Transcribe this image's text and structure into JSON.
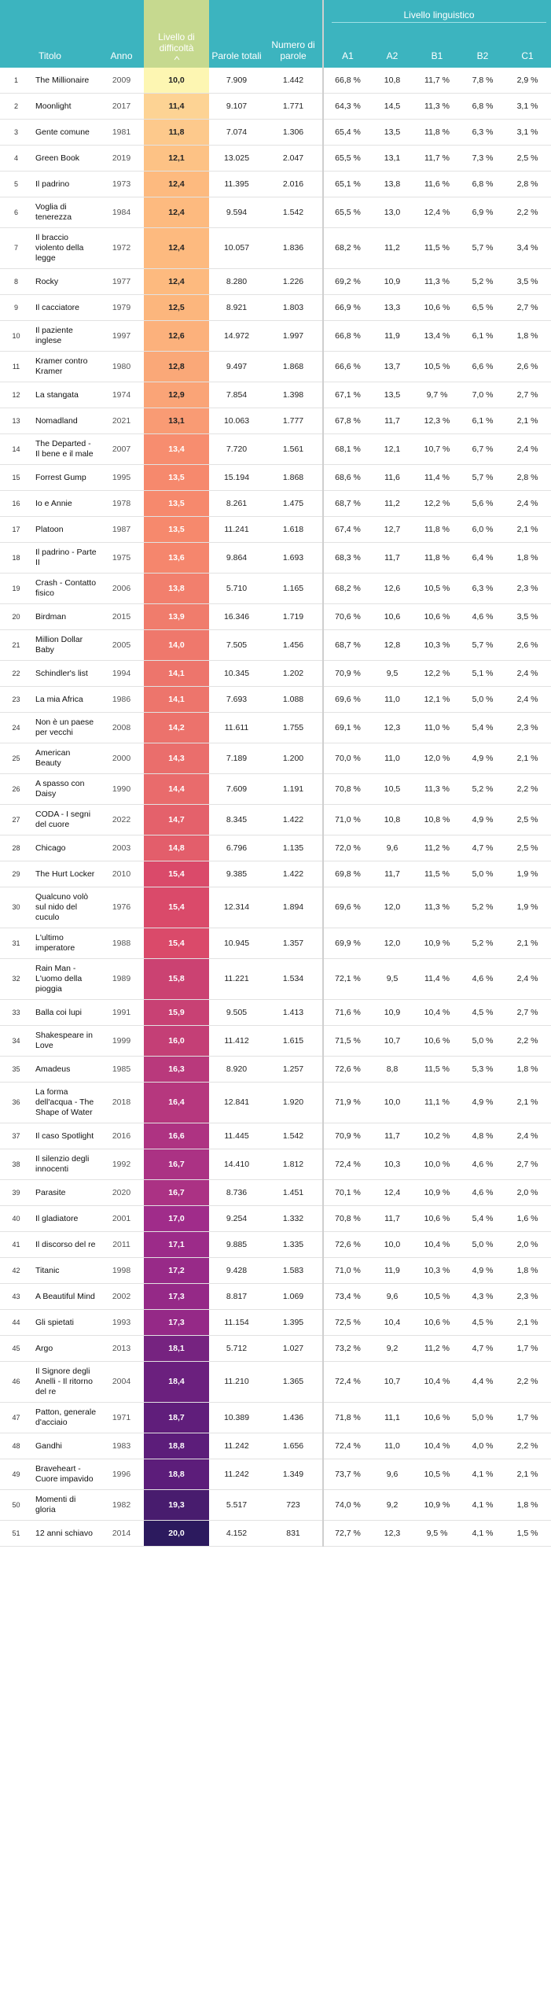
{
  "header": {
    "group": "Livello linguistico",
    "columns": [
      "Titolo",
      "Anno",
      "Livello di difficoltà",
      "Parole totali",
      "Numero di parole",
      "A1",
      "A2",
      "B1",
      "B2",
      "C1"
    ]
  },
  "table": {
    "rows": [
      [
        "1",
        "The Millionaire",
        "2009",
        "10,0",
        "7.909",
        "1.442",
        "66,8 %",
        "10,8",
        "11,7 %",
        "7,8 %",
        "2,9 %"
      ],
      [
        "2",
        "Moonlight",
        "2017",
        "11,4",
        "9.107",
        "1.771",
        "64,3 %",
        "14,5",
        "11,3 %",
        "6,8 %",
        "3,1 %"
      ],
      [
        "3",
        "Gente comune",
        "1981",
        "11,8",
        "7.074",
        "1.306",
        "65,4 %",
        "13,5",
        "11,8 %",
        "6,3 %",
        "3,1 %"
      ],
      [
        "4",
        "Green Book",
        "2019",
        "12,1",
        "13.025",
        "2.047",
        "65,5 %",
        "13,1",
        "11,7 %",
        "7,3 %",
        "2,5 %"
      ],
      [
        "5",
        "Il padrino",
        "1973",
        "12,4",
        "11.395",
        "2.016",
        "65,1 %",
        "13,8",
        "11,6 %",
        "6,8 %",
        "2,8 %"
      ],
      [
        "6",
        "Voglia di tenerezza",
        "1984",
        "12,4",
        "9.594",
        "1.542",
        "65,5 %",
        "13,0",
        "12,4 %",
        "6,9 %",
        "2,2 %"
      ],
      [
        "7",
        "Il braccio violento della legge",
        "1972",
        "12,4",
        "10.057",
        "1.836",
        "68,2 %",
        "11,2",
        "11,5 %",
        "5,7 %",
        "3,4 %"
      ],
      [
        "8",
        "Rocky",
        "1977",
        "12,4",
        "8.280",
        "1.226",
        "69,2 %",
        "10,9",
        "11,3 %",
        "5,2 %",
        "3,5 %"
      ],
      [
        "9",
        "Il cacciatore",
        "1979",
        "12,5",
        "8.921",
        "1.803",
        "66,9 %",
        "13,3",
        "10,6 %",
        "6,5 %",
        "2,7 %"
      ],
      [
        "10",
        "Il paziente inglese",
        "1997",
        "12,6",
        "14.972",
        "1.997",
        "66,8 %",
        "11,9",
        "13,4 %",
        "6,1 %",
        "1,8 %"
      ],
      [
        "11",
        "Kramer contro Kramer",
        "1980",
        "12,8",
        "9.497",
        "1.868",
        "66,6 %",
        "13,7",
        "10,5 %",
        "6,6 %",
        "2,6 %"
      ],
      [
        "12",
        "La stangata",
        "1974",
        "12,9",
        "7.854",
        "1.398",
        "67,1 %",
        "13,5",
        "9,7 %",
        "7,0 %",
        "2,7 %"
      ],
      [
        "13",
        "Nomadland",
        "2021",
        "13,1",
        "10.063",
        "1.777",
        "67,8 %",
        "11,7",
        "12,3 %",
        "6,1 %",
        "2,1 %"
      ],
      [
        "14",
        "The Departed - Il bene e il male",
        "2007",
        "13,4",
        "7.720",
        "1.561",
        "68,1 %",
        "12,1",
        "10,7 %",
        "6,7 %",
        "2,4 %"
      ],
      [
        "15",
        "Forrest Gump",
        "1995",
        "13,5",
        "15.194",
        "1.868",
        "68,6 %",
        "11,6",
        "11,4 %",
        "5,7 %",
        "2,8 %"
      ],
      [
        "16",
        "Io e Annie",
        "1978",
        "13,5",
        "8.261",
        "1.475",
        "68,7 %",
        "11,2",
        "12,2 %",
        "5,6 %",
        "2,4 %"
      ],
      [
        "17",
        "Platoon",
        "1987",
        "13,5",
        "11.241",
        "1.618",
        "67,4 %",
        "12,7",
        "11,8 %",
        "6,0 %",
        "2,1 %"
      ],
      [
        "18",
        "Il padrino - Parte II",
        "1975",
        "13,6",
        "9.864",
        "1.693",
        "68,3 %",
        "11,7",
        "11,8 %",
        "6,4 %",
        "1,8 %"
      ],
      [
        "19",
        "Crash - Contatto fisico",
        "2006",
        "13,8",
        "5.710",
        "1.165",
        "68,2 %",
        "12,6",
        "10,5 %",
        "6,3 %",
        "2,3 %"
      ],
      [
        "20",
        "Birdman",
        "2015",
        "13,9",
        "16.346",
        "1.719",
        "70,6 %",
        "10,6",
        "10,6 %",
        "4,6 %",
        "3,5 %"
      ],
      [
        "21",
        "Million Dollar Baby",
        "2005",
        "14,0",
        "7.505",
        "1.456",
        "68,7 %",
        "12,8",
        "10,3 %",
        "5,7 %",
        "2,6 %"
      ],
      [
        "22",
        "Schindler's list",
        "1994",
        "14,1",
        "10.345",
        "1.202",
        "70,9 %",
        "9,5",
        "12,2 %",
        "5,1 %",
        "2,4 %"
      ],
      [
        "23",
        "La mia Africa",
        "1986",
        "14,1",
        "7.693",
        "1.088",
        "69,6 %",
        "11,0",
        "12,1 %",
        "5,0 %",
        "2,4 %"
      ],
      [
        "24",
        "Non è un paese per vecchi",
        "2008",
        "14,2",
        "11.611",
        "1.755",
        "69,1 %",
        "12,3",
        "11,0 %",
        "5,4 %",
        "2,3 %"
      ],
      [
        "25",
        "American Beauty",
        "2000",
        "14,3",
        "7.189",
        "1.200",
        "70,0 %",
        "11,0",
        "12,0 %",
        "4,9 %",
        "2,1 %"
      ],
      [
        "26",
        "A spasso con Daisy",
        "1990",
        "14,4",
        "7.609",
        "1.191",
        "70,8 %",
        "10,5",
        "11,3 %",
        "5,2 %",
        "2,2 %"
      ],
      [
        "27",
        "CODA - I segni del cuore",
        "2022",
        "14,7",
        "8.345",
        "1.422",
        "71,0 %",
        "10,8",
        "10,8 %",
        "4,9 %",
        "2,5 %"
      ],
      [
        "28",
        "Chicago",
        "2003",
        "14,8",
        "6.796",
        "1.135",
        "72,0 %",
        "9,6",
        "11,2 %",
        "4,7 %",
        "2,5 %"
      ],
      [
        "29",
        "The Hurt Locker",
        "2010",
        "15,4",
        "9.385",
        "1.422",
        "69,8 %",
        "11,7",
        "11,5 %",
        "5,0 %",
        "1,9 %"
      ],
      [
        "30",
        "Qualcuno volò sul nido del cuculo",
        "1976",
        "15,4",
        "12.314",
        "1.894",
        "69,6 %",
        "12,0",
        "11,3 %",
        "5,2 %",
        "1,9 %"
      ],
      [
        "31",
        "L'ultimo imperatore",
        "1988",
        "15,4",
        "10.945",
        "1.357",
        "69,9 %",
        "12,0",
        "10,9 %",
        "5,2 %",
        "2,1 %"
      ],
      [
        "32",
        "Rain Man - L'uomo della pioggia",
        "1989",
        "15,8",
        "11.221",
        "1.534",
        "72,1 %",
        "9,5",
        "11,4 %",
        "4,6 %",
        "2,4 %"
      ],
      [
        "33",
        "Balla coi lupi",
        "1991",
        "15,9",
        "9.505",
        "1.413",
        "71,6 %",
        "10,9",
        "10,4 %",
        "4,5 %",
        "2,7 %"
      ],
      [
        "34",
        "Shakespeare in Love",
        "1999",
        "16,0",
        "11.412",
        "1.615",
        "71,5 %",
        "10,7",
        "10,6 %",
        "5,0 %",
        "2,2 %"
      ],
      [
        "35",
        "Amadeus",
        "1985",
        "16,3",
        "8.920",
        "1.257",
        "72,6 %",
        "8,8",
        "11,5 %",
        "5,3 %",
        "1,8 %"
      ],
      [
        "36",
        "La forma dell'acqua - The Shape of Water",
        "2018",
        "16,4",
        "12.841",
        "1.920",
        "71,9 %",
        "10,0",
        "11,1 %",
        "4,9 %",
        "2,1 %"
      ],
      [
        "37",
        "Il caso Spotlight",
        "2016",
        "16,6",
        "11.445",
        "1.542",
        "70,9 %",
        "11,7",
        "10,2 %",
        "4,8 %",
        "2,4 %"
      ],
      [
        "38",
        "Il silenzio degli innocenti",
        "1992",
        "16,7",
        "14.410",
        "1.812",
        "72,4 %",
        "10,3",
        "10,0 %",
        "4,6 %",
        "2,7 %"
      ],
      [
        "39",
        "Parasite",
        "2020",
        "16,7",
        "8.736",
        "1.451",
        "70,1 %",
        "12,4",
        "10,9 %",
        "4,6 %",
        "2,0 %"
      ],
      [
        "40",
        "Il gladiatore",
        "2001",
        "17,0",
        "9.254",
        "1.332",
        "70,8 %",
        "11,7",
        "10,6 %",
        "5,4 %",
        "1,6 %"
      ],
      [
        "41",
        "Il discorso del re",
        "2011",
        "17,1",
        "9.885",
        "1.335",
        "72,6 %",
        "10,0",
        "10,4 %",
        "5,0 %",
        "2,0 %"
      ],
      [
        "42",
        "Titanic",
        "1998",
        "17,2",
        "9.428",
        "1.583",
        "71,0 %",
        "11,9",
        "10,3 %",
        "4,9 %",
        "1,8 %"
      ],
      [
        "43",
        "A Beautiful Mind",
        "2002",
        "17,3",
        "8.817",
        "1.069",
        "73,4 %",
        "9,6",
        "10,5 %",
        "4,3 %",
        "2,3 %"
      ],
      [
        "44",
        "Gli spietati",
        "1993",
        "17,3",
        "11.154",
        "1.395",
        "72,5 %",
        "10,4",
        "10,6 %",
        "4,5 %",
        "2,1 %"
      ],
      [
        "45",
        "Argo",
        "2013",
        "18,1",
        "5.712",
        "1.027",
        "73,2 %",
        "9,2",
        "11,2 %",
        "4,7 %",
        "1,7 %"
      ],
      [
        "46",
        "Il Signore degli Anelli - Il ritorno del re",
        "2004",
        "18,4",
        "11.210",
        "1.365",
        "72,4 %",
        "10,7",
        "10,4 %",
        "4,4 %",
        "2,2 %"
      ],
      [
        "47",
        "Patton, generale d'acciaio",
        "1971",
        "18,7",
        "10.389",
        "1.436",
        "71,8 %",
        "11,1",
        "10,6 %",
        "5,0 %",
        "1,7 %"
      ],
      [
        "48",
        "Gandhi",
        "1983",
        "18,8",
        "11.242",
        "1.656",
        "72,4 %",
        "11,0",
        "10,4 %",
        "4,0 %",
        "2,2 %"
      ],
      [
        "49",
        "Braveheart - Cuore impavido",
        "1996",
        "18,8",
        "11.242",
        "1.349",
        "73,7 %",
        "9,6",
        "10,5 %",
        "4,1 %",
        "2,1 %"
      ],
      [
        "50",
        "Momenti di gloria",
        "1982",
        "19,3",
        "5.517",
        "723",
        "74,0 %",
        "9,2",
        "10,9 %",
        "4,1 %",
        "1,8 %"
      ],
      [
        "51",
        "12 anni schiavo",
        "2014",
        "20,0",
        "4.152",
        "831",
        "72,7 %",
        "12,3",
        "9,5 %",
        "4,1 %",
        "1,5 %"
      ]
    ]
  }
}
